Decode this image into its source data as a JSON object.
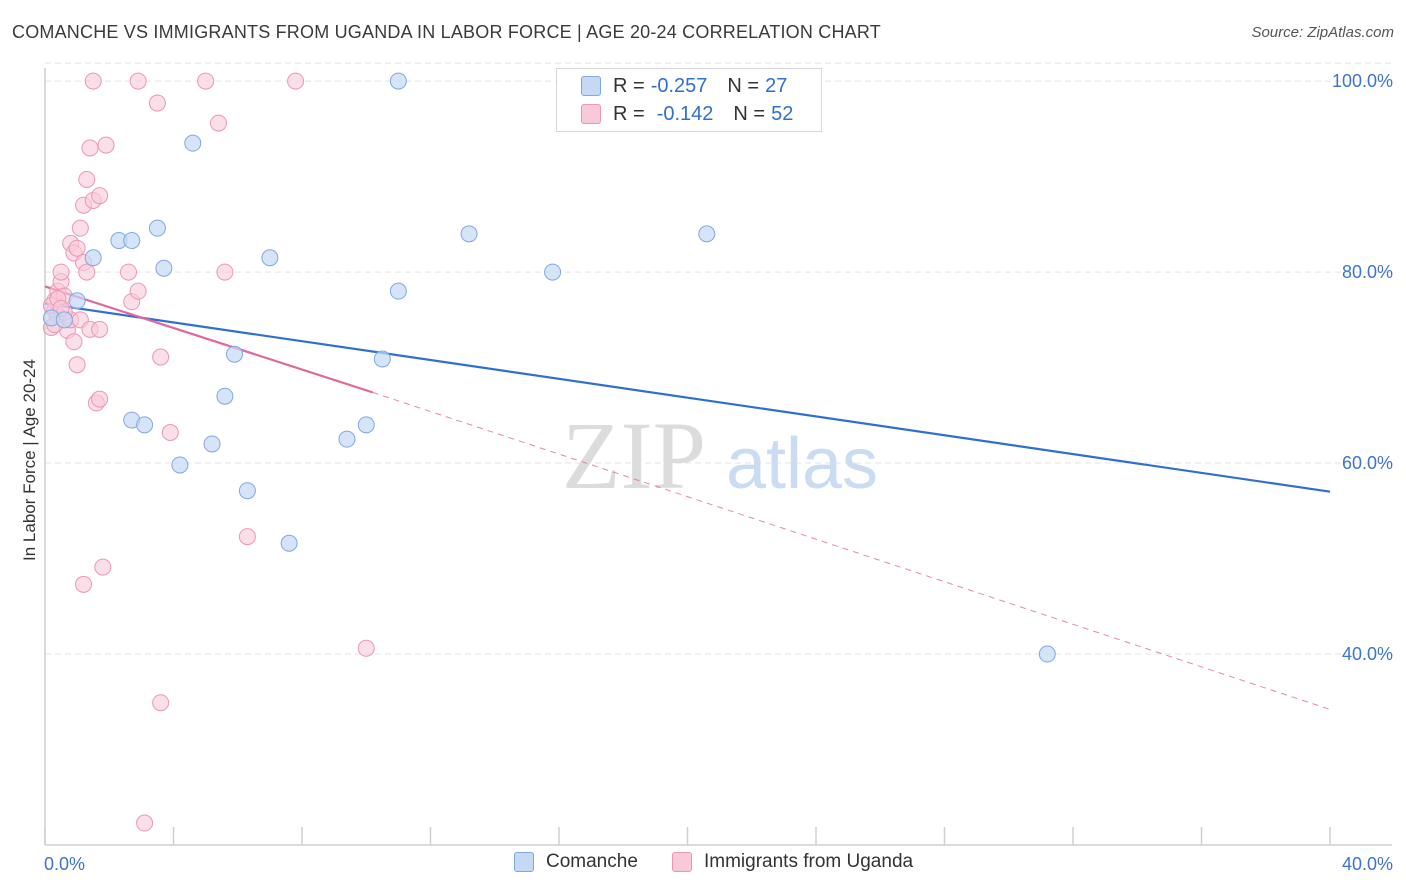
{
  "title": "COMANCHE VS IMMIGRANTS FROM UGANDA IN LABOR FORCE | AGE 20-24 CORRELATION CHART",
  "source": "Source: ZipAtlas.com",
  "watermark": {
    "zip": "ZIP",
    "atlas": "atlas"
  },
  "colors": {
    "blue": "#2f6fd1",
    "blue_fill": "#c5d9f5",
    "blue_stroke": "#7fa8e3",
    "pink": "#e0689a",
    "pink_fill": "#f9c9d9",
    "pink_stroke": "#ec96b6",
    "grid": "#e3e3e3",
    "tick_label": "#3d74cc"
  },
  "legend": {
    "rows": [
      {
        "r_label": "R = ",
        "r_value": "-0.257",
        "n_label": "N = ",
        "n_value": "27"
      },
      {
        "r_label": "R = ",
        "r_value": "-0.142",
        "n_label": "N = ",
        "n_value": "52"
      }
    ]
  },
  "bottom_legend": {
    "series1": "Comanche",
    "series2": "Immigrants from Uganda"
  },
  "chart_data": {
    "type": "scatter",
    "title": "COMANCHE VS IMMIGRANTS FROM UGANDA IN LABOR FORCE | AGE 20-24 CORRELATION CHART",
    "xlabel": "",
    "ylabel": "In Labor Force | Age 20-24",
    "xlim": [
      0,
      40
    ],
    "ylim": [
      20,
      102
    ],
    "x_ticks": [
      0,
      4,
      8,
      12,
      16,
      20,
      24,
      28,
      32,
      36,
      40
    ],
    "x_tick_labels": [
      "0.0%",
      "40.0%"
    ],
    "y_ticks": [
      40,
      60,
      80,
      100
    ],
    "y_tick_labels": [
      "40.0%",
      "60.0%",
      "80.0%",
      "100.0%"
    ],
    "grid": true,
    "series": [
      {
        "name": "Comanche",
        "color": "blue",
        "points": [
          [
            0.2,
            75.2
          ],
          [
            0.6,
            75.0
          ],
          [
            1.0,
            77.0
          ],
          [
            1.5,
            81.5
          ],
          [
            2.3,
            83.3
          ],
          [
            2.7,
            83.3
          ],
          [
            3.5,
            84.6
          ],
          [
            3.7,
            80.4
          ],
          [
            4.6,
            93.5
          ],
          [
            2.7,
            64.5
          ],
          [
            3.1,
            64.0
          ],
          [
            4.2,
            59.8
          ],
          [
            5.2,
            62.0
          ],
          [
            5.6,
            67.0
          ],
          [
            5.9,
            71.4
          ],
          [
            6.3,
            57.1
          ],
          [
            7.0,
            81.5
          ],
          [
            7.6,
            51.6
          ],
          [
            9.4,
            62.5
          ],
          [
            10.0,
            64.0
          ],
          [
            10.5,
            70.9
          ],
          [
            11.0,
            78.0
          ],
          [
            11.0,
            100.0
          ],
          [
            13.2,
            84.0
          ],
          [
            15.8,
            80.0
          ],
          [
            20.6,
            84.0
          ],
          [
            31.2,
            40.0
          ]
        ],
        "trend": {
          "x": [
            0,
            40
          ],
          "y": [
            76.7,
            57.0
          ]
        }
      },
      {
        "name": "Immigrants from Uganda",
        "color": "pink",
        "points": [
          [
            0.2,
            74.2
          ],
          [
            0.3,
            76.0
          ],
          [
            0.3,
            77.0
          ],
          [
            0.4,
            75.5
          ],
          [
            0.4,
            78.0
          ],
          [
            0.5,
            79.0
          ],
          [
            0.5,
            80.0
          ],
          [
            0.6,
            77.5
          ],
          [
            0.7,
            73.9
          ],
          [
            0.8,
            83.0
          ],
          [
            0.8,
            75.0
          ],
          [
            0.9,
            82.0
          ],
          [
            0.9,
            72.7
          ],
          [
            1.0,
            82.5
          ],
          [
            1.0,
            70.3
          ],
          [
            1.1,
            84.6
          ],
          [
            1.1,
            75.0
          ],
          [
            1.2,
            81.0
          ],
          [
            1.2,
            87.0
          ],
          [
            1.3,
            89.7
          ],
          [
            1.3,
            80.0
          ],
          [
            1.4,
            93.0
          ],
          [
            1.4,
            74.0
          ],
          [
            1.5,
            87.5
          ],
          [
            1.5,
            100.0
          ],
          [
            1.6,
            66.3
          ],
          [
            1.7,
            74.0
          ],
          [
            1.7,
            66.7
          ],
          [
            1.7,
            88.0
          ],
          [
            1.9,
            93.3
          ],
          [
            1.8,
            49.1
          ],
          [
            1.2,
            47.3
          ],
          [
            2.6,
            80.0
          ],
          [
            2.7,
            76.9
          ],
          [
            2.9,
            78.0
          ],
          [
            2.9,
            100.0
          ],
          [
            3.1,
            22.3
          ],
          [
            3.5,
            97.7
          ],
          [
            3.6,
            71.1
          ],
          [
            3.6,
            34.9
          ],
          [
            3.9,
            63.2
          ],
          [
            5.0,
            100.0
          ],
          [
            5.4,
            95.6
          ],
          [
            5.6,
            80.0
          ],
          [
            6.3,
            52.3
          ],
          [
            7.8,
            100.0
          ],
          [
            10.0,
            40.6
          ],
          [
            0.2,
            76.5
          ],
          [
            0.4,
            77.2
          ],
          [
            0.6,
            75.8
          ],
          [
            0.3,
            74.5
          ],
          [
            0.5,
            76.2
          ]
        ],
        "trend": {
          "x": [
            0,
            10.2
          ],
          "y": [
            78.5,
            67.4
          ]
        },
        "trend_extended": {
          "x": [
            10.2,
            40
          ],
          "y": [
            67.4,
            34.2
          ]
        }
      }
    ]
  }
}
